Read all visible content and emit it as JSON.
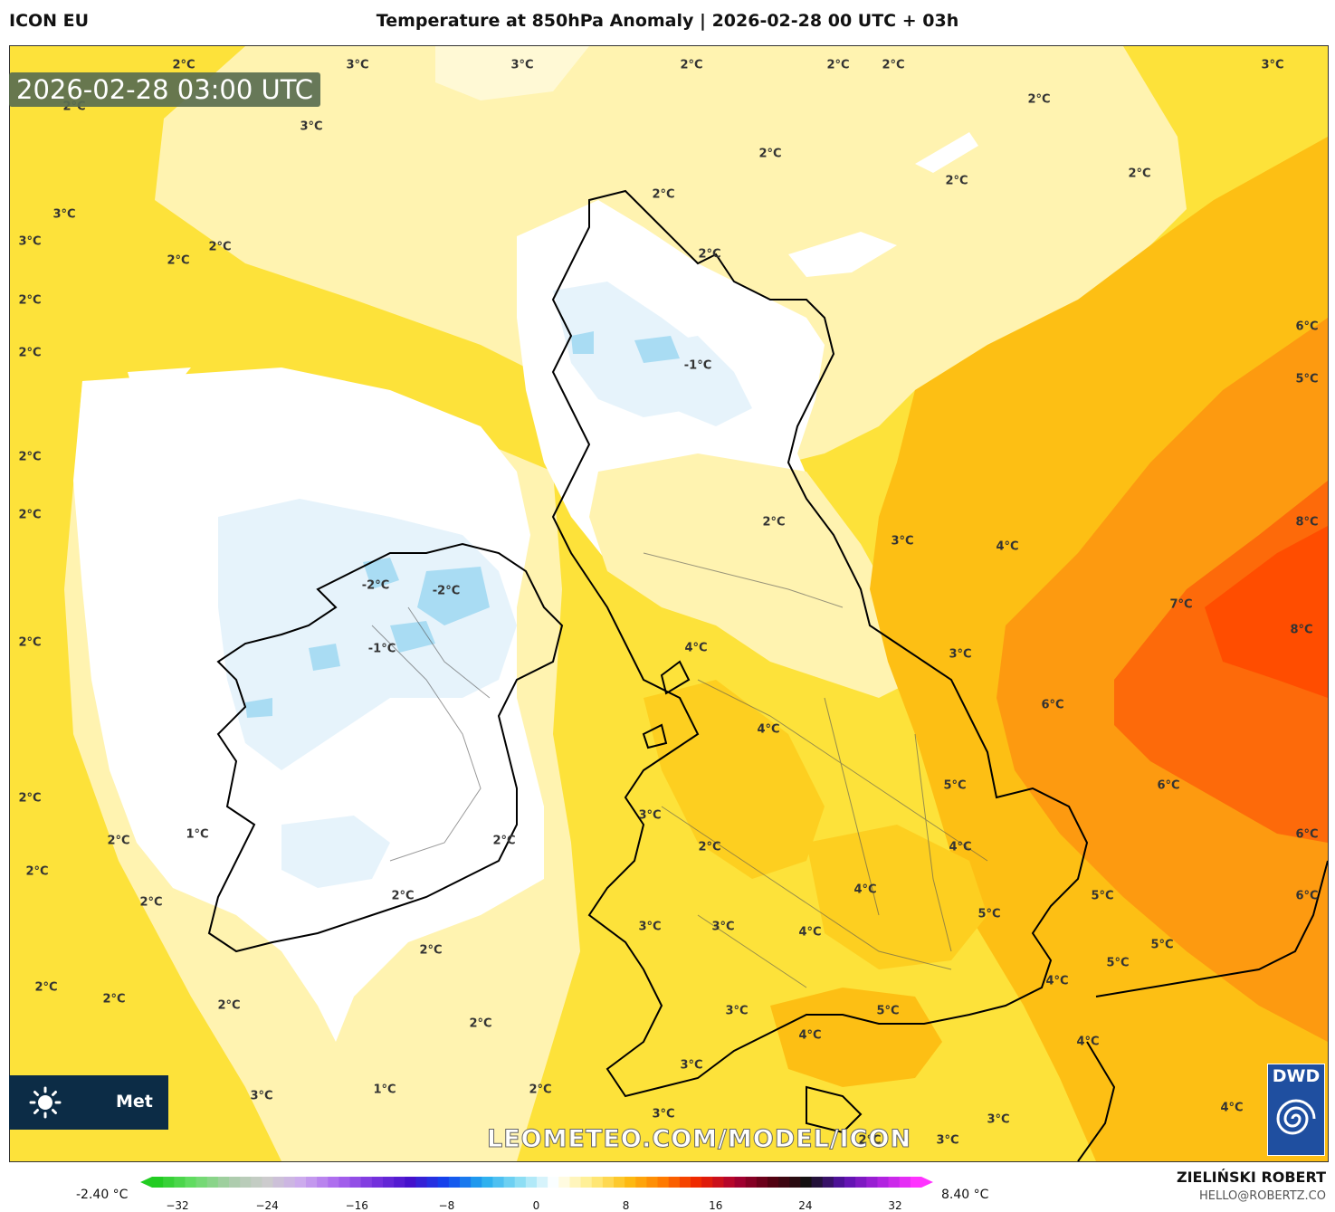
{
  "header": {
    "model": "ICON EU",
    "title": "Temperature at 850hPa Anomaly | 2026-02-28 00 UTC + 03h"
  },
  "badge": {
    "valid_time": "2026-02-28 03:00 UTC"
  },
  "colors": {
    "sea_cold": "#fffbe0",
    "base": "#fde23a",
    "warm": "#fdbf14",
    "warmer": "#fd9a10",
    "hot": "#fd6a0a",
    "hottest": "#ff4d00",
    "cold": "#ffffff",
    "colder": "#e6f3fb",
    "coldest": "#a9dcf3"
  },
  "map_labels": [
    {
      "text": "2°C"
    },
    {
      "text": "3°C"
    },
    {
      "text": "3°C"
    },
    {
      "text": "2°C"
    },
    {
      "text": "2°C"
    },
    {
      "text": "2°C"
    },
    {
      "text": "3°C"
    },
    {
      "text": "2°C"
    },
    {
      "text": "3°C"
    },
    {
      "text": "2°C"
    },
    {
      "text": "2°C"
    },
    {
      "text": "2°C"
    },
    {
      "text": "2°C"
    },
    {
      "text": "2°C"
    },
    {
      "text": "3°C"
    },
    {
      "text": "3°C"
    },
    {
      "text": "2°C"
    },
    {
      "text": "2°C"
    },
    {
      "text": "2°C"
    },
    {
      "text": "2°C"
    },
    {
      "text": "-1°C"
    },
    {
      "text": "6°C"
    },
    {
      "text": "5°C"
    },
    {
      "text": "2°C"
    },
    {
      "text": "2°C"
    },
    {
      "text": "2°C"
    },
    {
      "text": "2°C"
    },
    {
      "text": "3°C"
    },
    {
      "text": "4°C"
    },
    {
      "text": "8°C"
    },
    {
      "text": "-2°C"
    },
    {
      "text": "-2°C"
    },
    {
      "text": "7°C"
    },
    {
      "text": "8°C"
    },
    {
      "text": "2°C"
    },
    {
      "text": "-1°C"
    },
    {
      "text": "4°C"
    },
    {
      "text": "3°C"
    },
    {
      "text": "6°C"
    },
    {
      "text": "4°C"
    },
    {
      "text": "5°C"
    },
    {
      "text": "6°C"
    },
    {
      "text": "2°C"
    },
    {
      "text": "3°C"
    },
    {
      "text": "1°C"
    },
    {
      "text": "2°C"
    },
    {
      "text": "2°C"
    },
    {
      "text": "2°C"
    },
    {
      "text": "4°C"
    },
    {
      "text": "6°C"
    },
    {
      "text": "2°C"
    },
    {
      "text": "2°C"
    },
    {
      "text": "4°C"
    },
    {
      "text": "5°C"
    },
    {
      "text": "6°C"
    },
    {
      "text": "3°C"
    },
    {
      "text": "3°C"
    },
    {
      "text": "4°C"
    },
    {
      "text": "5°C"
    },
    {
      "text": "5°C"
    },
    {
      "text": "5°C"
    },
    {
      "text": "2°C"
    },
    {
      "text": "4°C"
    },
    {
      "text": "2°C"
    },
    {
      "text": "2°C"
    },
    {
      "text": "2°C"
    },
    {
      "text": "3°C"
    },
    {
      "text": "5°C"
    },
    {
      "text": "4°C"
    },
    {
      "text": "2°C"
    },
    {
      "text": "4°C"
    },
    {
      "text": "3°C"
    },
    {
      "text": "2°C"
    },
    {
      "text": "1°C"
    },
    {
      "text": "2°C"
    },
    {
      "text": "3°C"
    },
    {
      "text": "4°C"
    },
    {
      "text": "3°C"
    },
    {
      "text": "2°C"
    },
    {
      "text": "3°C"
    },
    {
      "text": "3°C"
    }
  ],
  "watermark": "LEOMETEO.COM/MODEL/ICON",
  "logos": {
    "left_brand": "Met",
    "right_brand": "DWD"
  },
  "colorbar": {
    "min_label": "-2.40 °C",
    "max_label": "8.40 °C",
    "ticks": [
      "−32",
      "−24",
      "−16",
      "−8",
      "0",
      "8",
      "16",
      "24",
      "32"
    ],
    "stops": [
      "#22cc22",
      "#66dd66",
      "#aaccaa",
      "#cccccc",
      "#ccaaee",
      "#aa66ee",
      "#7733dd",
      "#4411cc",
      "#1144ee",
      "#22aaee",
      "#88ddf4",
      "#ffffff",
      "#ffee88",
      "#fdbf14",
      "#ff7a00",
      "#ee2200",
      "#aa0033",
      "#550011",
      "#111111",
      "#5511aa",
      "#aa22dd",
      "#ff33ff"
    ]
  },
  "credit": {
    "author": "ZIELIŃSKI ROBERT",
    "email": "HELLO@ROBERTZ.CO"
  }
}
